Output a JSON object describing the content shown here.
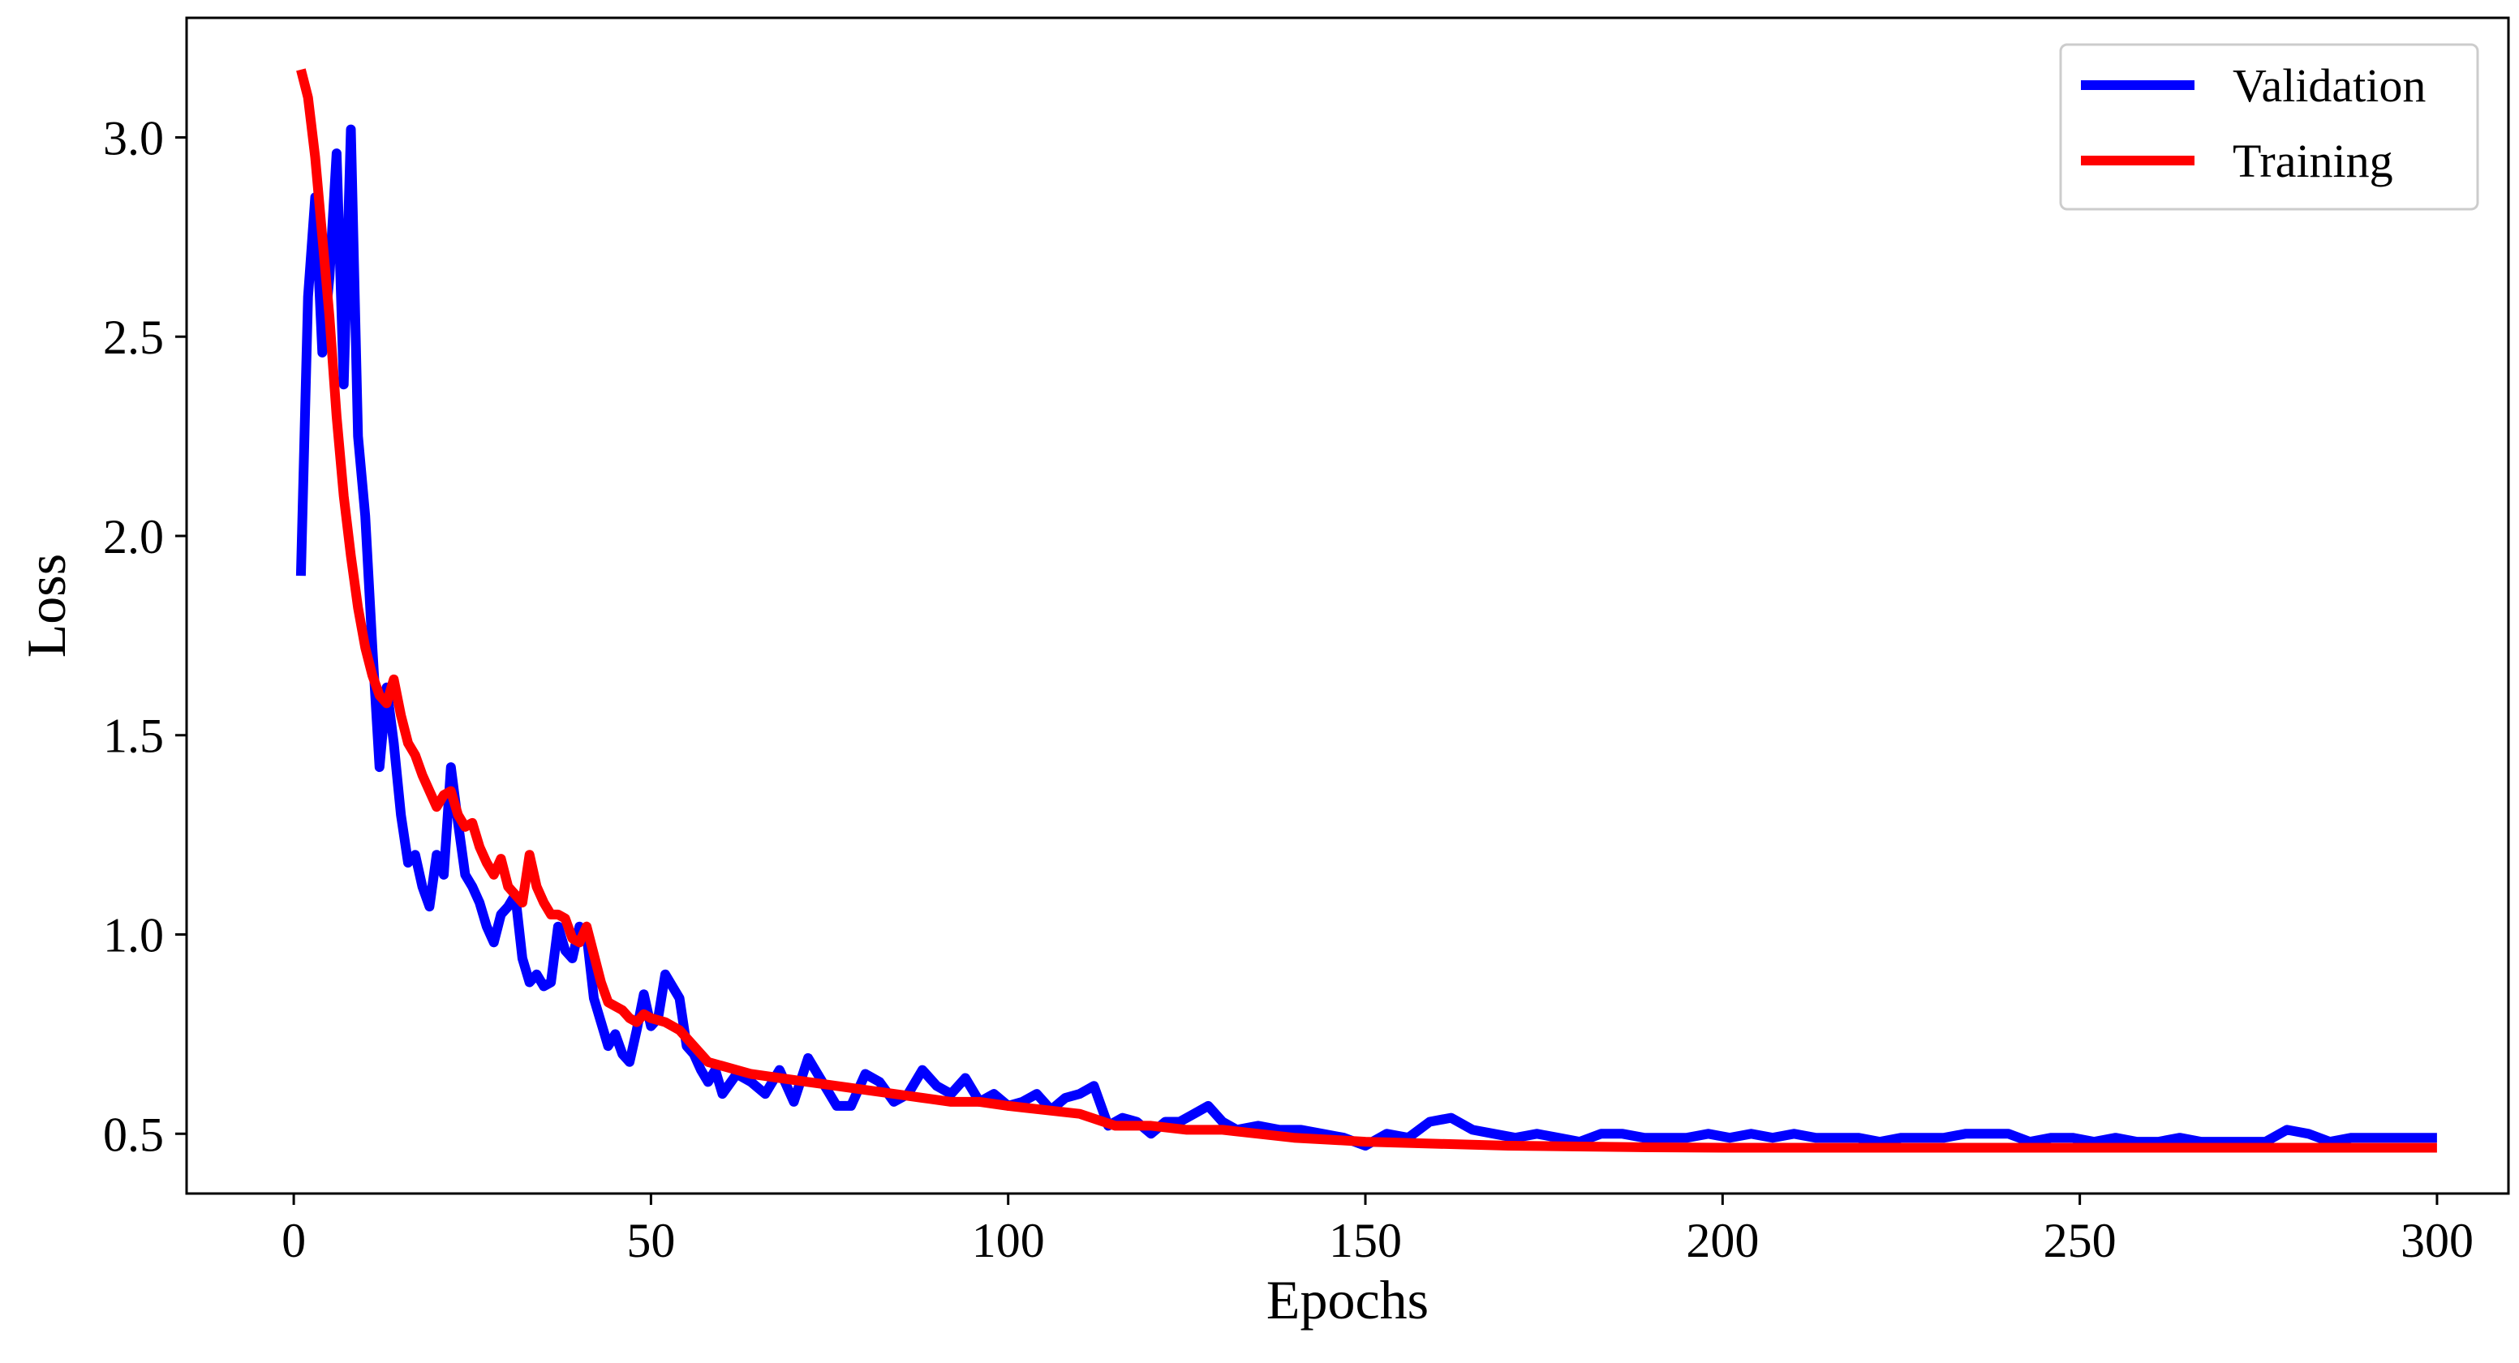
{
  "chart_data": {
    "type": "line",
    "title": "",
    "xlabel": "Epochs",
    "ylabel": "Loss",
    "xlim": [
      -15,
      310
    ],
    "ylim": [
      0.35,
      3.3
    ],
    "xticks": [
      0,
      50,
      100,
      150,
      200,
      250,
      300
    ],
    "xtick_labels": [
      "0",
      "50",
      "100",
      "150",
      "200",
      "250",
      "300"
    ],
    "yticks": [
      0.5,
      1.0,
      1.5,
      2.0,
      2.5,
      3.0
    ],
    "ytick_labels": [
      "0.5",
      "1.0",
      "1.5",
      "2.0",
      "2.5",
      "3.0"
    ],
    "grid": false,
    "legend_position": "top-right",
    "series": [
      {
        "name": "Validation",
        "color": "#0000ff",
        "x": [
          1,
          2,
          3,
          4,
          5,
          6,
          7,
          8,
          9,
          10,
          11,
          12,
          13,
          14,
          15,
          16,
          17,
          18,
          19,
          20,
          21,
          22,
          23,
          24,
          25,
          26,
          27,
          28,
          29,
          30,
          31,
          32,
          33,
          34,
          35,
          36,
          37,
          38,
          39,
          40,
          41,
          42,
          43,
          44,
          45,
          46,
          47,
          48,
          49,
          50,
          51,
          52,
          53,
          54,
          55,
          56,
          57,
          58,
          59,
          60,
          62,
          64,
          66,
          68,
          70,
          72,
          74,
          76,
          78,
          80,
          82,
          84,
          86,
          88,
          90,
          92,
          94,
          96,
          98,
          100,
          102,
          104,
          106,
          108,
          110,
          112,
          114,
          116,
          118,
          120,
          122,
          124,
          126,
          128,
          130,
          132,
          135,
          138,
          141,
          144,
          147,
          150,
          153,
          156,
          159,
          162,
          165,
          168,
          171,
          174,
          177,
          180,
          183,
          186,
          189,
          192,
          195,
          198,
          201,
          204,
          207,
          210,
          213,
          216,
          219,
          222,
          225,
          228,
          231,
          234,
          237,
          240,
          243,
          246,
          249,
          252,
          255,
          258,
          261,
          264,
          267,
          270,
          273,
          276,
          279,
          282,
          285,
          288,
          291,
          294,
          297,
          300
        ],
        "values": [
          1.9,
          2.6,
          2.85,
          2.46,
          2.65,
          2.96,
          2.38,
          3.02,
          2.25,
          2.05,
          1.72,
          1.42,
          1.62,
          1.48,
          1.3,
          1.18,
          1.2,
          1.12,
          1.07,
          1.2,
          1.15,
          1.42,
          1.28,
          1.15,
          1.12,
          1.08,
          1.02,
          0.98,
          1.05,
          1.07,
          1.1,
          0.94,
          0.88,
          0.9,
          0.87,
          0.88,
          1.02,
          0.96,
          0.94,
          1.02,
          1.0,
          0.84,
          0.78,
          0.72,
          0.75,
          0.7,
          0.68,
          0.76,
          0.85,
          0.77,
          0.79,
          0.9,
          0.87,
          0.84,
          0.72,
          0.7,
          0.66,
          0.63,
          0.66,
          0.6,
          0.65,
          0.63,
          0.6,
          0.66,
          0.58,
          0.69,
          0.63,
          0.57,
          0.57,
          0.65,
          0.63,
          0.58,
          0.6,
          0.66,
          0.62,
          0.6,
          0.64,
          0.58,
          0.6,
          0.57,
          0.58,
          0.6,
          0.56,
          0.59,
          0.6,
          0.62,
          0.52,
          0.54,
          0.53,
          0.5,
          0.53,
          0.53,
          0.55,
          0.57,
          0.53,
          0.51,
          0.52,
          0.51,
          0.51,
          0.5,
          0.49,
          0.47,
          0.5,
          0.49,
          0.53,
          0.54,
          0.51,
          0.5,
          0.49,
          0.5,
          0.49,
          0.48,
          0.5,
          0.5,
          0.49,
          0.49,
          0.49,
          0.5,
          0.49,
          0.5,
          0.49,
          0.5,
          0.49,
          0.49,
          0.49,
          0.48,
          0.49,
          0.49,
          0.49,
          0.5,
          0.5,
          0.5,
          0.48,
          0.49,
          0.49,
          0.48,
          0.49,
          0.48,
          0.48,
          0.49,
          0.48,
          0.48,
          0.48,
          0.48,
          0.51,
          0.5,
          0.48,
          0.49,
          0.49,
          0.49,
          0.49,
          0.49
        ],
        "line_width": 12
      },
      {
        "name": "Training",
        "color": "#ff0000",
        "x": [
          1,
          2,
          3,
          4,
          5,
          6,
          7,
          8,
          9,
          10,
          11,
          12,
          13,
          14,
          15,
          16,
          17,
          18,
          19,
          20,
          21,
          22,
          23,
          24,
          25,
          26,
          27,
          28,
          29,
          30,
          31,
          32,
          33,
          34,
          35,
          36,
          37,
          38,
          39,
          40,
          41,
          42,
          43,
          44,
          45,
          46,
          47,
          48,
          49,
          50,
          52,
          54,
          56,
          58,
          60,
          64,
          68,
          72,
          76,
          80,
          84,
          88,
          92,
          96,
          100,
          105,
          110,
          115,
          120,
          125,
          130,
          135,
          140,
          145,
          150,
          160,
          170,
          180,
          190,
          200,
          220,
          240,
          260,
          280,
          300
        ],
        "values": [
          3.17,
          3.1,
          2.95,
          2.75,
          2.55,
          2.3,
          2.1,
          1.95,
          1.82,
          1.72,
          1.65,
          1.6,
          1.58,
          1.64,
          1.55,
          1.48,
          1.45,
          1.4,
          1.36,
          1.32,
          1.35,
          1.36,
          1.3,
          1.27,
          1.28,
          1.22,
          1.18,
          1.15,
          1.19,
          1.12,
          1.1,
          1.08,
          1.2,
          1.12,
          1.08,
          1.05,
          1.05,
          1.04,
          0.99,
          0.98,
          1.02,
          0.95,
          0.88,
          0.83,
          0.82,
          0.81,
          0.79,
          0.78,
          0.8,
          0.79,
          0.78,
          0.76,
          0.72,
          0.68,
          0.67,
          0.65,
          0.64,
          0.63,
          0.62,
          0.61,
          0.6,
          0.59,
          0.58,
          0.58,
          0.57,
          0.56,
          0.55,
          0.52,
          0.52,
          0.51,
          0.51,
          0.5,
          0.49,
          0.485,
          0.48,
          0.475,
          0.47,
          0.468,
          0.466,
          0.465,
          0.465,
          0.465,
          0.465,
          0.465,
          0.465
        ],
        "line_width": 12
      }
    ]
  }
}
